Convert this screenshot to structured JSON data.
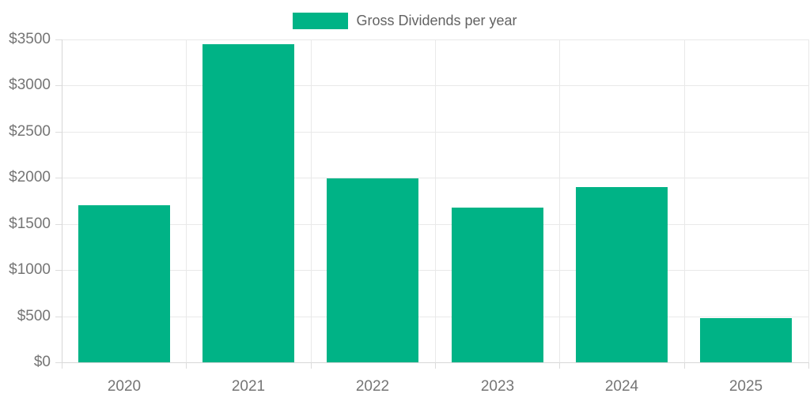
{
  "legend": {
    "label": "Gross Dividends per year",
    "swatch_color": "#00b386"
  },
  "chart_data": {
    "type": "bar",
    "title": "Gross Dividends per year",
    "series_name": "Gross Dividends per year",
    "categories": [
      "2020",
      "2021",
      "2022",
      "2023",
      "2024",
      "2025"
    ],
    "values": [
      1700,
      3450,
      1990,
      1680,
      1900,
      480
    ],
    "y_tick_labels": [
      "$0",
      "$500",
      "$1000",
      "$1500",
      "$2000",
      "$2500",
      "$3000",
      "$3500"
    ],
    "y_tick_values": [
      0,
      500,
      1000,
      1500,
      2000,
      2500,
      3000,
      3500
    ],
    "ylim": [
      0,
      3500
    ],
    "y_step": 500,
    "xlabel": "",
    "ylabel": "",
    "grid": true,
    "legend_position": "top"
  },
  "colors": {
    "bar": "#00b386",
    "gridline": "#e9e9e9",
    "axis_border": "#d7d7d7",
    "tick_text": "#757575",
    "legend_text": "#636363",
    "background": "#ffffff"
  }
}
